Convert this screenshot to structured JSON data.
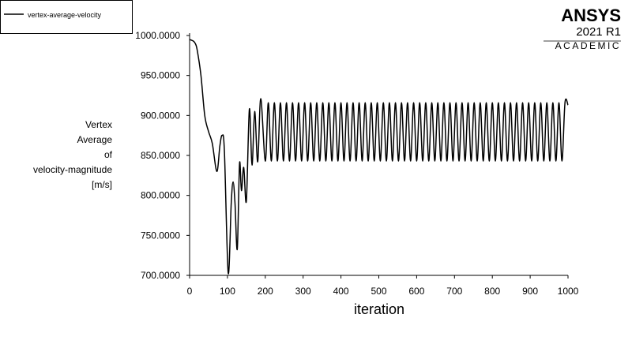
{
  "chart_data": {
    "type": "line",
    "xlabel": "iteration",
    "ylabel": [
      "Vertex",
      "Average",
      "of",
      "velocity-magnitude",
      "[m/s]"
    ],
    "logo": {
      "brand": "ANSYS",
      "version": "2021 R1",
      "edition": "ACADEMIC"
    },
    "xlim": [
      0,
      1000
    ],
    "xticks": [
      0,
      100,
      200,
      300,
      400,
      500,
      600,
      700,
      800,
      900,
      1000
    ],
    "ylim": [
      700,
      1000
    ],
    "yticks": [
      {
        "value": 700,
        "label": "700.0000"
      },
      {
        "value": 750,
        "label": "750.0000"
      },
      {
        "value": 800,
        "label": "800.0000"
      },
      {
        "value": 850,
        "label": "850.0000"
      },
      {
        "value": 900,
        "label": "900.0000"
      },
      {
        "value": 950,
        "label": "950.0000"
      },
      {
        "value": 1000,
        "label": "1000.0000"
      }
    ],
    "grid": false,
    "legend": "top-left",
    "x": [
      0,
      10,
      15,
      20,
      30,
      40,
      50,
      60,
      72,
      80,
      86,
      92,
      102,
      110,
      115,
      120,
      126,
      132,
      137,
      143,
      150,
      158,
      165,
      172,
      180,
      188,
      200,
      208,
      216,
      224,
      232,
      240,
      248,
      256,
      264,
      272,
      280,
      288,
      296,
      304,
      312,
      320,
      328,
      336,
      344,
      352,
      360,
      368,
      376,
      384,
      392,
      400,
      408,
      416,
      424,
      432,
      440,
      448,
      456,
      464,
      472,
      480,
      488,
      496,
      504,
      512,
      520,
      528,
      536,
      544,
      552,
      560,
      568,
      576,
      584,
      592,
      600,
      608,
      616,
      624,
      632,
      640,
      648,
      656,
      664,
      672,
      680,
      688,
      696,
      704,
      712,
      720,
      728,
      736,
      744,
      752,
      760,
      768,
      776,
      784,
      792,
      800,
      808,
      816,
      824,
      832,
      840,
      848,
      856,
      864,
      872,
      880,
      888,
      896,
      904,
      912,
      920,
      928,
      936,
      944,
      952,
      960,
      968,
      976,
      984,
      992,
      1000
    ],
    "series": [
      {
        "name": "vertex-average-velocity",
        "color": "#000000",
        "values": [
          995,
          993,
          990,
          982,
          950,
          900,
          880,
          865,
          830,
          862,
          875,
          855,
          703,
          790,
          817,
          790,
          733,
          840,
          806,
          835,
          793,
          908,
          838,
          905,
          842,
          921,
          843,
          916,
          843,
          916,
          843,
          916,
          843,
          916,
          843,
          916,
          843,
          916,
          843,
          916,
          843,
          916,
          843,
          916,
          843,
          916,
          843,
          916,
          843,
          916,
          843,
          916,
          843,
          916,
          843,
          916,
          843,
          916,
          843,
          916,
          843,
          916,
          843,
          916,
          843,
          916,
          843,
          916,
          843,
          916,
          843,
          916,
          843,
          916,
          843,
          916,
          843,
          916,
          843,
          916,
          843,
          916,
          843,
          916,
          843,
          916,
          843,
          916,
          843,
          916,
          843,
          916,
          843,
          916,
          843,
          916,
          843,
          916,
          843,
          916,
          843,
          916,
          843,
          916,
          843,
          916,
          843,
          916,
          843,
          916,
          843,
          916,
          843,
          916,
          843,
          916,
          843,
          916,
          843,
          916,
          843,
          916,
          843,
          916,
          843,
          916,
          913
        ]
      }
    ]
  }
}
